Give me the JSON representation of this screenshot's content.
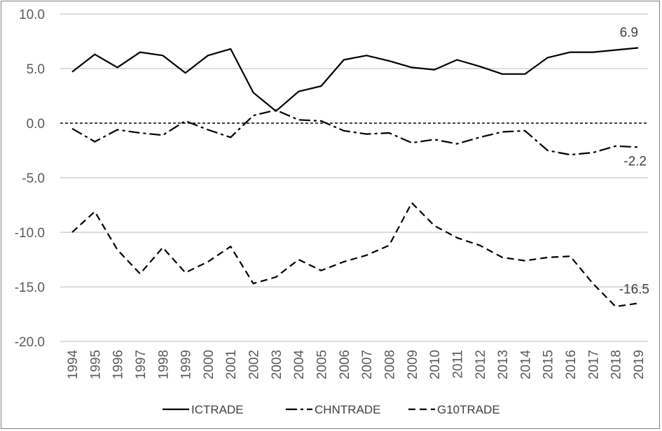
{
  "chart_data": {
    "type": "line",
    "title": "",
    "xlabel": "",
    "ylabel": "",
    "ylim": [
      -20,
      10
    ],
    "y_ticks": [
      "10.0",
      "5.0",
      "0.0",
      "-5.0",
      "-10.0",
      "-15.0",
      "-20.0"
    ],
    "y_tick_values": [
      10,
      5,
      0,
      -5,
      -10,
      -15,
      -20
    ],
    "grid": "horizontal",
    "legend_position": "bottom",
    "zero_line": "dashed",
    "x": [
      "1994",
      "1995",
      "1996",
      "1997",
      "1998",
      "1999",
      "2000",
      "2001",
      "2002",
      "2003",
      "2004",
      "2005",
      "2006",
      "2007",
      "2008",
      "2009",
      "2010",
      "2011",
      "2012",
      "2013",
      "2014",
      "2015",
      "2016",
      "2017",
      "2018",
      "2019"
    ],
    "series": [
      {
        "name": "ICTRADE",
        "style": "solid",
        "color": "#000000",
        "values": [
          4.7,
          6.3,
          5.1,
          6.5,
          6.2,
          4.6,
          6.2,
          6.8,
          2.8,
          1.1,
          2.9,
          3.4,
          5.8,
          6.2,
          5.7,
          5.1,
          4.9,
          5.8,
          5.2,
          4.5,
          4.5,
          6.0,
          6.5,
          6.5,
          6.7,
          6.9
        ]
      },
      {
        "name": "CHNTRADE",
        "style": "dash-dot",
        "color": "#000000",
        "values": [
          -0.5,
          -1.7,
          -0.6,
          -0.9,
          -1.1,
          0.2,
          -0.6,
          -1.3,
          0.7,
          1.2,
          0.3,
          0.2,
          -0.7,
          -1.0,
          -0.9,
          -1.8,
          -1.5,
          -1.9,
          -1.3,
          -0.8,
          -0.7,
          -2.5,
          -2.9,
          -2.7,
          -2.1,
          -2.2
        ]
      },
      {
        "name": "G10TRADE",
        "style": "dashed",
        "color": "#000000",
        "values": [
          -10.0,
          -8.1,
          -11.6,
          -13.8,
          -11.4,
          -13.7,
          -12.7,
          -11.3,
          -14.7,
          -14.1,
          -12.5,
          -13.5,
          -12.7,
          -12.1,
          -11.2,
          -7.3,
          -9.4,
          -10.5,
          -11.2,
          -12.3,
          -12.6,
          -12.3,
          -12.2,
          -14.7,
          -16.8,
          -16.5
        ]
      }
    ],
    "annotations": [
      {
        "text": "6.9",
        "series": "ICTRADE",
        "x": "2019"
      },
      {
        "text": "-2.2",
        "series": "CHNTRADE",
        "x": "2019"
      },
      {
        "text": "-16.5",
        "series": "G10TRADE",
        "x": "2019"
      }
    ]
  }
}
